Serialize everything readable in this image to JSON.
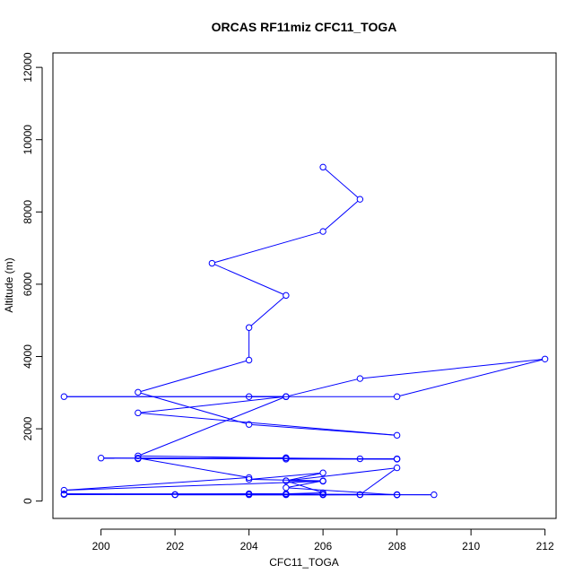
{
  "chart_data": {
    "type": "line",
    "title": "ORCAS RF11miz CFC11_TOGA",
    "xlabel": "CFC11_TOGA",
    "ylabel": "Altitude (m)",
    "xlim": [
      198.7,
      212.3
    ],
    "ylim": [
      -480,
      12400
    ],
    "x_ticks": [
      200,
      202,
      204,
      206,
      208,
      210,
      212
    ],
    "y_ticks": [
      0,
      2000,
      4000,
      6000,
      8000,
      10000,
      12000
    ],
    "grid": false,
    "markers": "open-circle",
    "series": [
      {
        "color": "#0000ff",
        "points": [
          [
            206,
            9240
          ],
          [
            207,
            8350
          ],
          [
            206,
            7460
          ],
          [
            203,
            6580
          ],
          [
            205,
            5690
          ],
          [
            204,
            4800
          ],
          [
            204,
            3900
          ],
          [
            201,
            3010
          ],
          [
            204,
            2120
          ],
          [
            208,
            1820
          ],
          [
            201,
            2440
          ],
          [
            205,
            2890
          ],
          [
            207,
            3390
          ],
          [
            212,
            3930
          ],
          [
            208,
            2890
          ],
          [
            199,
            2890
          ],
          [
            205,
            2890
          ],
          [
            204,
            2890
          ],
          [
            205,
            2890
          ],
          [
            201,
            1250
          ],
          [
            205,
            1190
          ],
          [
            207,
            1170
          ],
          [
            200,
            1190
          ],
          [
            208,
            1170
          ],
          [
            201,
            1170
          ],
          [
            205,
            1200
          ],
          [
            205,
            1160
          ],
          [
            208,
            1160
          ],
          [
            201,
            1190
          ],
          [
            204,
            650
          ],
          [
            199,
            300
          ],
          [
            206,
            550
          ],
          [
            205,
            560
          ],
          [
            206,
            230
          ],
          [
            205,
            200
          ],
          [
            199,
            200
          ],
          [
            202,
            180
          ],
          [
            205,
            180
          ],
          [
            209,
            175
          ],
          [
            208,
            175
          ],
          [
            206,
            175
          ],
          [
            202,
            175
          ],
          [
            207,
            175
          ],
          [
            204,
            175
          ],
          [
            205,
            175
          ],
          [
            206,
            175
          ],
          [
            208,
            180
          ],
          [
            205,
            180
          ],
          [
            207,
            180
          ],
          [
            204,
            200
          ],
          [
            205,
            200
          ],
          [
            206,
            190
          ],
          [
            199,
            180
          ],
          [
            204,
            200
          ],
          [
            202,
            180
          ],
          [
            207,
            180
          ],
          [
            208,
            920
          ],
          [
            205,
            560
          ],
          [
            206,
            780
          ],
          [
            204,
            600
          ],
          [
            206,
            560
          ],
          [
            205,
            370
          ],
          [
            208,
            170
          ]
        ]
      }
    ]
  }
}
